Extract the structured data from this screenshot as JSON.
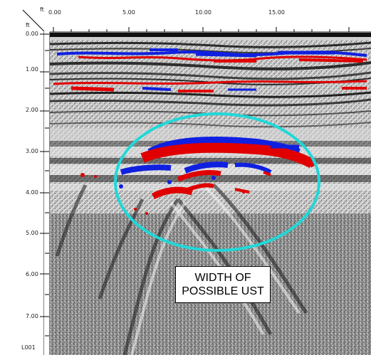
{
  "axes": {
    "x_unit": "ft",
    "y_unit": "ft",
    "x_ticks": [
      "0.00",
      "5.00",
      "10.00",
      "15.00"
    ],
    "y_ticks": [
      "0.00",
      "1.00",
      "2.00",
      "3.00",
      "4.00",
      "5.00",
      "6.00",
      "7.00"
    ]
  },
  "annotation": {
    "line1": "WIDTH OF",
    "line2": "POSSIBLE UST"
  },
  "line_label": "L001",
  "colors": {
    "positive_reflection": "#e00000",
    "negative_reflection": "#1020e0",
    "highlight_ellipse": "#20d8d8",
    "background_texture": "#7a7a7a"
  }
}
